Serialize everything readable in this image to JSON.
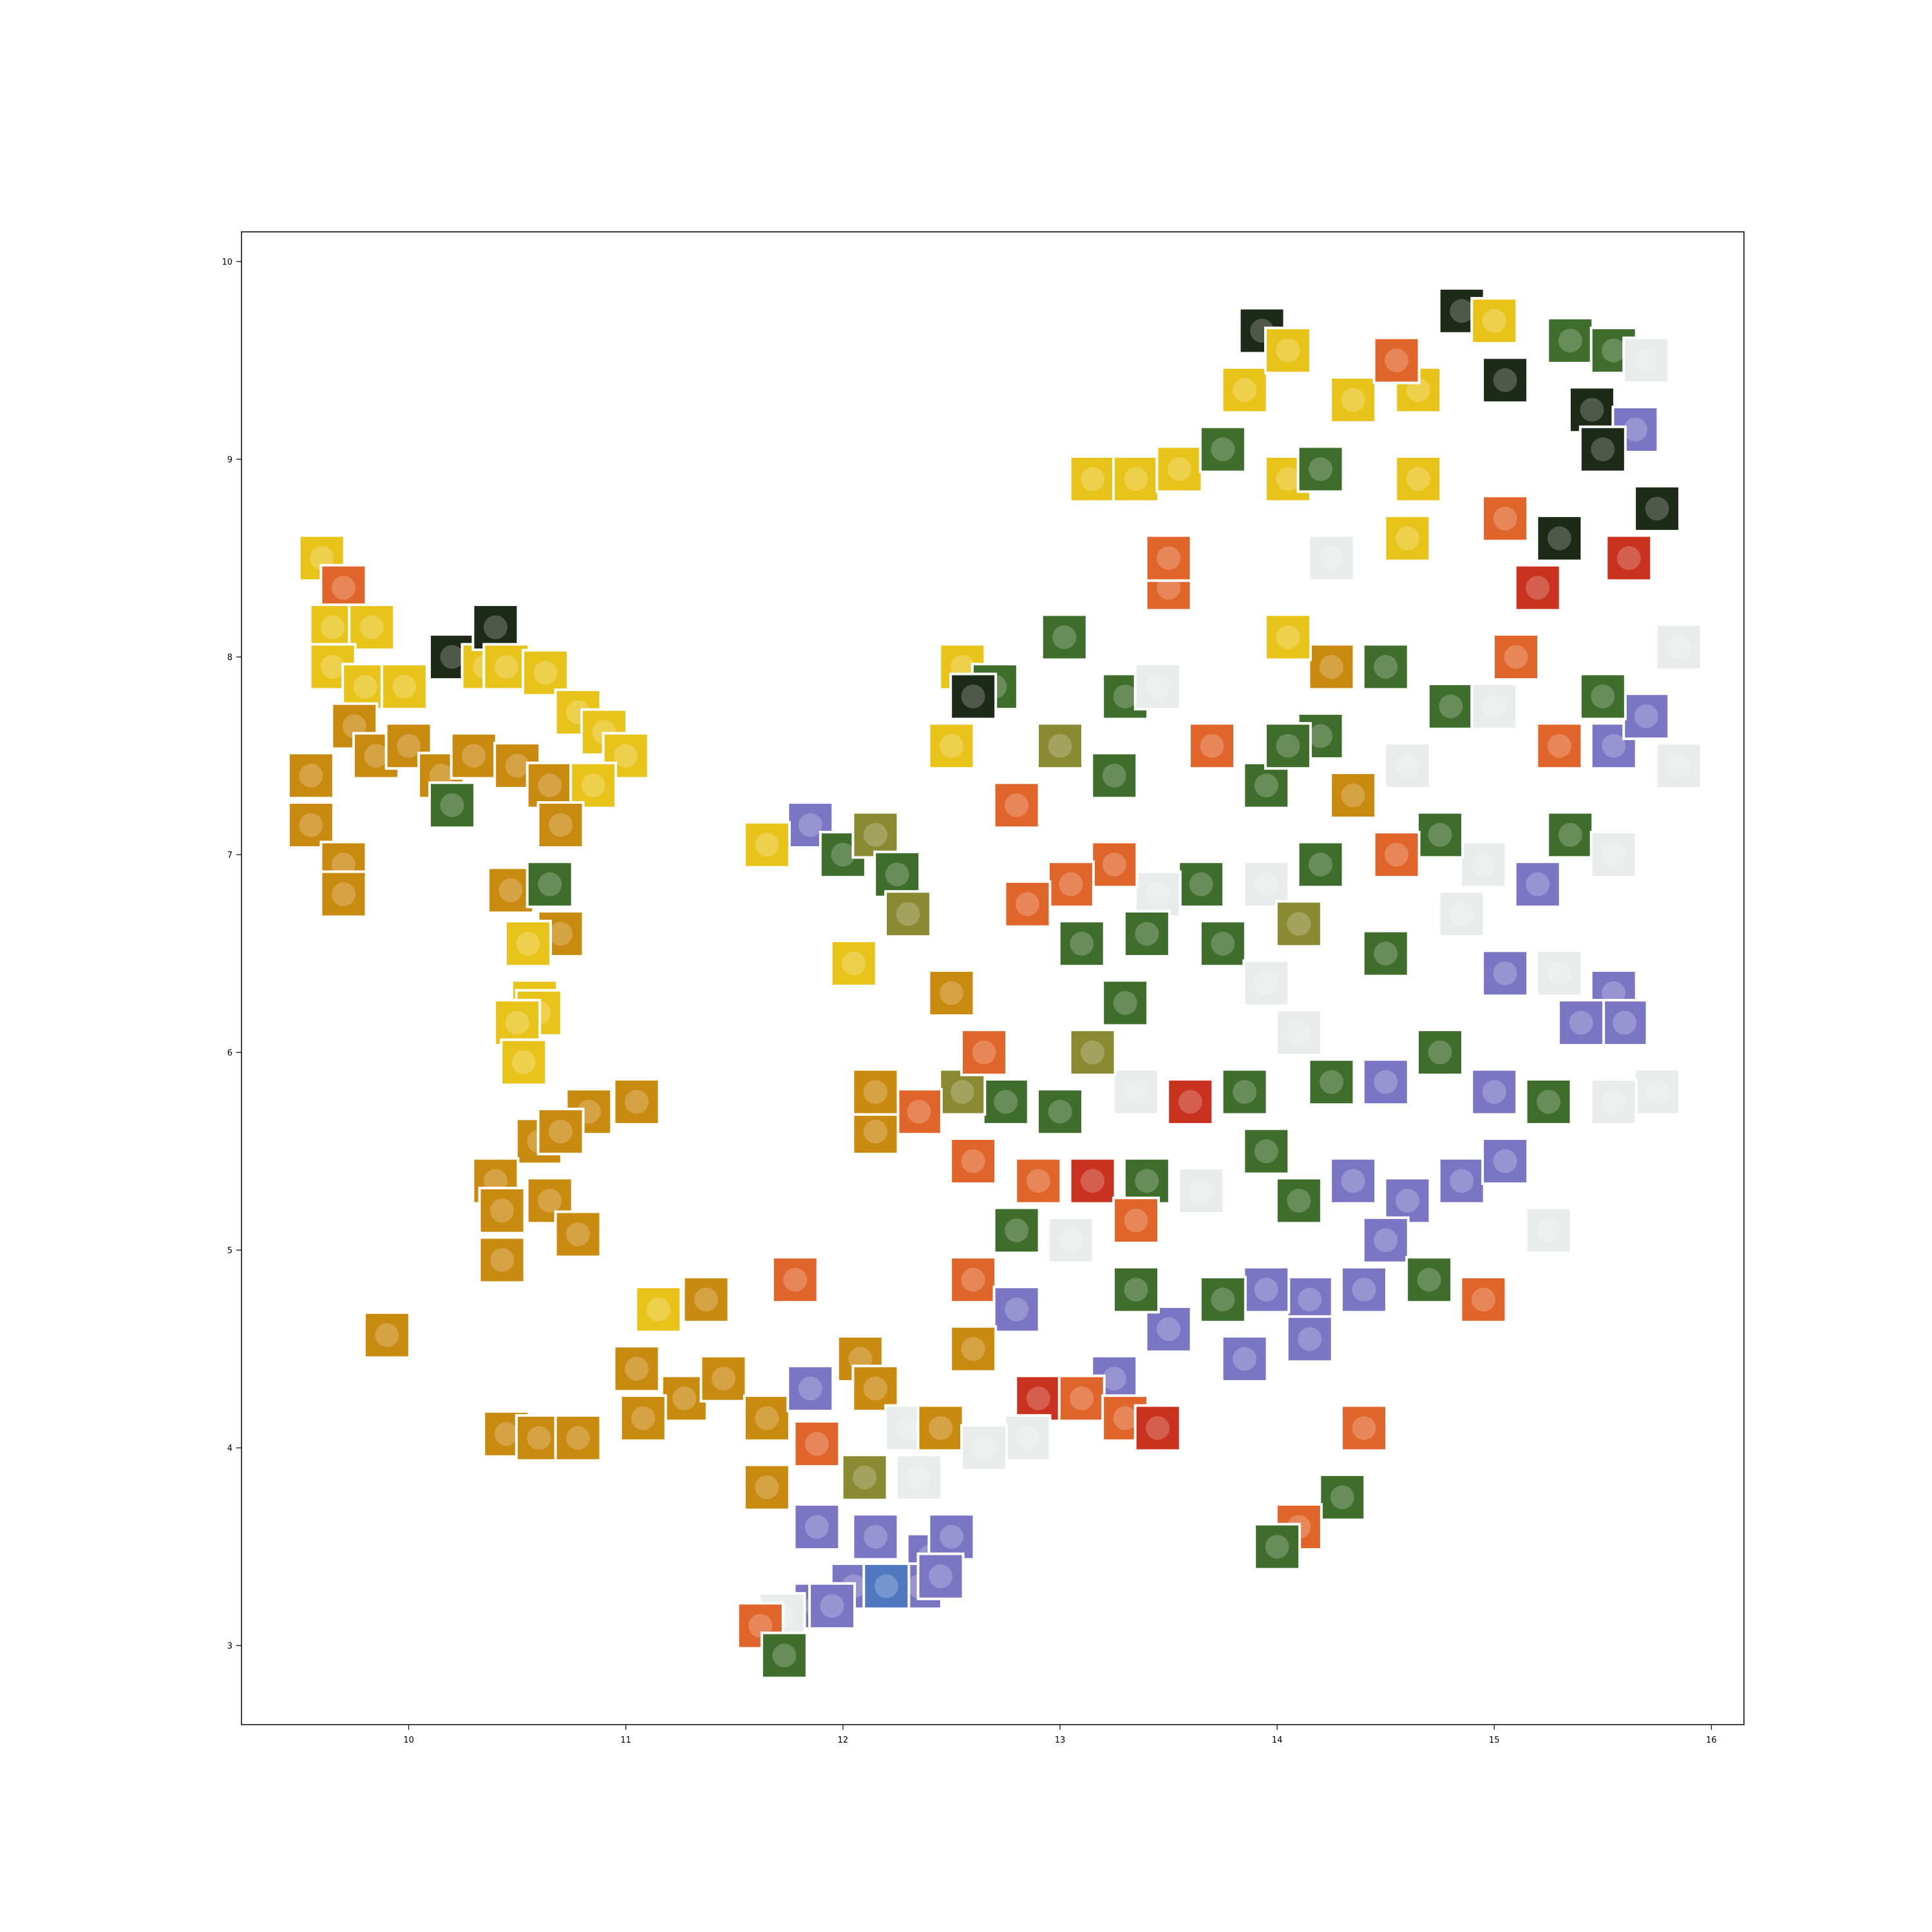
{
  "chart_data": {
    "type": "scatter",
    "title": "",
    "xlabel": "",
    "ylabel": "",
    "xlim": [
      9.23,
      16.15
    ],
    "ylim": [
      2.6,
      10.15
    ],
    "xticks": [
      10,
      11,
      12,
      13,
      14,
      15,
      16
    ],
    "yticks": [
      3,
      4,
      5,
      6,
      7,
      8,
      9,
      10
    ],
    "grid": false,
    "marker": "image-thumbnail",
    "palette": {
      "yellow": "#e8c31a",
      "sunflower": "#c98a10",
      "orange": "#e0652a",
      "red": "#c8321e",
      "green": "#3f6e2c",
      "dark": "#1e2a18",
      "purple": "#7b76c4",
      "white": "#e8ecea",
      "sky": "#4f78c0",
      "olive": "#8a8a32"
    },
    "points": [
      {
        "x": 9.6,
        "y": 8.5,
        "c": "yellow"
      },
      {
        "x": 9.7,
        "y": 8.35,
        "c": "orange"
      },
      {
        "x": 9.65,
        "y": 8.15,
        "c": "yellow"
      },
      {
        "x": 9.83,
        "y": 8.15,
        "c": "yellow"
      },
      {
        "x": 9.65,
        "y": 7.95,
        "c": "yellow"
      },
      {
        "x": 9.8,
        "y": 7.85,
        "c": "yellow"
      },
      {
        "x": 9.98,
        "y": 7.85,
        "c": "yellow"
      },
      {
        "x": 10.2,
        "y": 8.0,
        "c": "dark"
      },
      {
        "x": 10.35,
        "y": 7.95,
        "c": "yellow"
      },
      {
        "x": 10.4,
        "y": 8.15,
        "c": "dark"
      },
      {
        "x": 10.45,
        "y": 7.95,
        "c": "yellow"
      },
      {
        "x": 10.63,
        "y": 7.92,
        "c": "yellow"
      },
      {
        "x": 10.78,
        "y": 7.72,
        "c": "yellow"
      },
      {
        "x": 10.9,
        "y": 7.62,
        "c": "yellow"
      },
      {
        "x": 11.0,
        "y": 7.5,
        "c": "yellow"
      },
      {
        "x": 9.75,
        "y": 7.65,
        "c": "sunflower"
      },
      {
        "x": 9.55,
        "y": 7.4,
        "c": "sunflower"
      },
      {
        "x": 9.85,
        "y": 7.5,
        "c": "sunflower"
      },
      {
        "x": 10.0,
        "y": 7.55,
        "c": "sunflower"
      },
      {
        "x": 10.15,
        "y": 7.4,
        "c": "sunflower"
      },
      {
        "x": 10.3,
        "y": 7.5,
        "c": "sunflower"
      },
      {
        "x": 10.5,
        "y": 7.45,
        "c": "sunflower"
      },
      {
        "x": 10.65,
        "y": 7.35,
        "c": "sunflower"
      },
      {
        "x": 10.85,
        "y": 7.35,
        "c": "yellow"
      },
      {
        "x": 10.7,
        "y": 7.15,
        "c": "sunflower"
      },
      {
        "x": 10.2,
        "y": 7.25,
        "c": "green"
      },
      {
        "x": 9.55,
        "y": 7.15,
        "c": "sunflower"
      },
      {
        "x": 9.7,
        "y": 6.95,
        "c": "sunflower"
      },
      {
        "x": 9.7,
        "y": 6.8,
        "c": "sunflower"
      },
      {
        "x": 10.47,
        "y": 6.82,
        "c": "sunflower"
      },
      {
        "x": 10.65,
        "y": 6.85,
        "c": "green"
      },
      {
        "x": 10.7,
        "y": 6.6,
        "c": "sunflower"
      },
      {
        "x": 10.55,
        "y": 6.55,
        "c": "yellow"
      },
      {
        "x": 10.58,
        "y": 6.25,
        "c": "yellow"
      },
      {
        "x": 10.6,
        "y": 6.2,
        "c": "yellow"
      },
      {
        "x": 10.5,
        "y": 6.15,
        "c": "yellow"
      },
      {
        "x": 10.53,
        "y": 5.95,
        "c": "yellow"
      },
      {
        "x": 10.83,
        "y": 5.7,
        "c": "sunflower"
      },
      {
        "x": 11.05,
        "y": 5.75,
        "c": "sunflower"
      },
      {
        "x": 10.6,
        "y": 5.55,
        "c": "sunflower"
      },
      {
        "x": 10.7,
        "y": 5.6,
        "c": "sunflower"
      },
      {
        "x": 10.4,
        "y": 5.35,
        "c": "sunflower"
      },
      {
        "x": 10.43,
        "y": 5.2,
        "c": "sunflower"
      },
      {
        "x": 10.65,
        "y": 5.25,
        "c": "sunflower"
      },
      {
        "x": 10.78,
        "y": 5.08,
        "c": "sunflower"
      },
      {
        "x": 10.43,
        "y": 4.95,
        "c": "sunflower"
      },
      {
        "x": 9.9,
        "y": 4.57,
        "c": "sunflower"
      },
      {
        "x": 11.15,
        "y": 4.7,
        "c": "yellow"
      },
      {
        "x": 11.37,
        "y": 4.75,
        "c": "sunflower"
      },
      {
        "x": 11.05,
        "y": 4.4,
        "c": "sunflower"
      },
      {
        "x": 11.27,
        "y": 4.25,
        "c": "sunflower"
      },
      {
        "x": 11.45,
        "y": 4.35,
        "c": "sunflower"
      },
      {
        "x": 10.45,
        "y": 4.07,
        "c": "sunflower"
      },
      {
        "x": 10.6,
        "y": 4.05,
        "c": "sunflower"
      },
      {
        "x": 10.78,
        "y": 4.05,
        "c": "sunflower"
      },
      {
        "x": 11.08,
        "y": 4.15,
        "c": "sunflower"
      },
      {
        "x": 11.78,
        "y": 4.85,
        "c": "orange"
      },
      {
        "x": 11.65,
        "y": 4.15,
        "c": "sunflower"
      },
      {
        "x": 11.88,
        "y": 4.02,
        "c": "orange"
      },
      {
        "x": 11.85,
        "y": 4.3,
        "c": "purple"
      },
      {
        "x": 12.08,
        "y": 4.45,
        "c": "sunflower"
      },
      {
        "x": 12.15,
        "y": 4.3,
        "c": "sunflower"
      },
      {
        "x": 12.3,
        "y": 4.1,
        "c": "white"
      },
      {
        "x": 12.45,
        "y": 4.1,
        "c": "sunflower"
      },
      {
        "x": 11.65,
        "y": 3.8,
        "c": "sunflower"
      },
      {
        "x": 12.1,
        "y": 3.85,
        "c": "olive"
      },
      {
        "x": 12.35,
        "y": 3.85,
        "c": "white"
      },
      {
        "x": 11.88,
        "y": 3.6,
        "c": "purple"
      },
      {
        "x": 12.15,
        "y": 3.55,
        "c": "purple"
      },
      {
        "x": 12.4,
        "y": 3.45,
        "c": "purple"
      },
      {
        "x": 12.5,
        "y": 3.55,
        "c": "purple"
      },
      {
        "x": 12.35,
        "y": 3.3,
        "c": "purple"
      },
      {
        "x": 12.05,
        "y": 3.3,
        "c": "purple"
      },
      {
        "x": 11.88,
        "y": 3.2,
        "c": "purple"
      },
      {
        "x": 11.72,
        "y": 3.15,
        "c": "white"
      },
      {
        "x": 11.62,
        "y": 3.1,
        "c": "orange"
      },
      {
        "x": 11.95,
        "y": 3.2,
        "c": "purple"
      },
      {
        "x": 12.2,
        "y": 3.3,
        "c": "sky"
      },
      {
        "x": 12.45,
        "y": 3.35,
        "c": "purple"
      },
      {
        "x": 11.73,
        "y": 2.95,
        "c": "green"
      },
      {
        "x": 11.85,
        "y": 7.15,
        "c": "purple"
      },
      {
        "x": 11.65,
        "y": 7.05,
        "c": "yellow"
      },
      {
        "x": 12.0,
        "y": 7.0,
        "c": "green"
      },
      {
        "x": 12.15,
        "y": 7.1,
        "c": "olive"
      },
      {
        "x": 12.25,
        "y": 6.9,
        "c": "green"
      },
      {
        "x": 12.3,
        "y": 6.7,
        "c": "olive"
      },
      {
        "x": 12.05,
        "y": 6.45,
        "c": "yellow"
      },
      {
        "x": 12.5,
        "y": 7.55,
        "c": "yellow"
      },
      {
        "x": 12.55,
        "y": 7.95,
        "c": "yellow"
      },
      {
        "x": 12.7,
        "y": 7.85,
        "c": "green"
      },
      {
        "x": 12.6,
        "y": 7.8,
        "c": "dark"
      },
      {
        "x": 12.8,
        "y": 7.25,
        "c": "orange"
      },
      {
        "x": 13.02,
        "y": 8.1,
        "c": "green"
      },
      {
        "x": 13.0,
        "y": 7.55,
        "c": "olive"
      },
      {
        "x": 13.25,
        "y": 7.4,
        "c": "green"
      },
      {
        "x": 13.3,
        "y": 7.8,
        "c": "green"
      },
      {
        "x": 13.45,
        "y": 7.85,
        "c": "white"
      },
      {
        "x": 13.5,
        "y": 8.35,
        "c": "orange"
      },
      {
        "x": 13.5,
        "y": 8.5,
        "c": "orange"
      },
      {
        "x": 13.7,
        "y": 7.55,
        "c": "orange"
      },
      {
        "x": 13.95,
        "y": 7.35,
        "c": "green"
      },
      {
        "x": 13.15,
        "y": 8.9,
        "c": "yellow"
      },
      {
        "x": 13.35,
        "y": 8.9,
        "c": "yellow"
      },
      {
        "x": 13.55,
        "y": 8.95,
        "c": "yellow"
      },
      {
        "x": 13.75,
        "y": 9.05,
        "c": "green"
      },
      {
        "x": 13.85,
        "y": 9.35,
        "c": "yellow"
      },
      {
        "x": 13.93,
        "y": 9.65,
        "c": "dark"
      },
      {
        "x": 14.05,
        "y": 9.55,
        "c": "yellow"
      },
      {
        "x": 14.05,
        "y": 8.9,
        "c": "yellow"
      },
      {
        "x": 14.2,
        "y": 8.95,
        "c": "green"
      },
      {
        "x": 14.35,
        "y": 9.3,
        "c": "yellow"
      },
      {
        "x": 14.65,
        "y": 9.35,
        "c": "yellow"
      },
      {
        "x": 14.55,
        "y": 9.5,
        "c": "orange"
      },
      {
        "x": 14.85,
        "y": 9.75,
        "c": "dark"
      },
      {
        "x": 15.0,
        "y": 9.7,
        "c": "yellow"
      },
      {
        "x": 15.05,
        "y": 9.4,
        "c": "dark"
      },
      {
        "x": 15.35,
        "y": 9.6,
        "c": "green"
      },
      {
        "x": 15.55,
        "y": 9.55,
        "c": "green"
      },
      {
        "x": 15.7,
        "y": 9.5,
        "c": "white"
      },
      {
        "x": 15.45,
        "y": 9.25,
        "c": "dark"
      },
      {
        "x": 15.65,
        "y": 9.15,
        "c": "purple"
      },
      {
        "x": 15.5,
        "y": 9.05,
        "c": "dark"
      },
      {
        "x": 15.75,
        "y": 8.75,
        "c": "dark"
      },
      {
        "x": 15.62,
        "y": 8.5,
        "c": "red"
      },
      {
        "x": 15.3,
        "y": 8.6,
        "c": "dark"
      },
      {
        "x": 15.2,
        "y": 8.35,
        "c": "red"
      },
      {
        "x": 15.05,
        "y": 8.7,
        "c": "orange"
      },
      {
        "x": 14.65,
        "y": 8.9,
        "c": "yellow"
      },
      {
        "x": 14.6,
        "y": 8.6,
        "c": "yellow"
      },
      {
        "x": 14.25,
        "y": 8.5,
        "c": "white"
      },
      {
        "x": 14.5,
        "y": 7.95,
        "c": "green"
      },
      {
        "x": 14.2,
        "y": 7.6,
        "c": "green"
      },
      {
        "x": 14.25,
        "y": 7.95,
        "c": "sunflower"
      },
      {
        "x": 14.05,
        "y": 8.1,
        "c": "yellow"
      },
      {
        "x": 14.05,
        "y": 7.55,
        "c": "green"
      },
      {
        "x": 14.35,
        "y": 7.3,
        "c": "sunflower"
      },
      {
        "x": 14.6,
        "y": 7.45,
        "c": "white"
      },
      {
        "x": 14.8,
        "y": 7.75,
        "c": "green"
      },
      {
        "x": 15.0,
        "y": 7.75,
        "c": "white"
      },
      {
        "x": 15.1,
        "y": 8.0,
        "c": "orange"
      },
      {
        "x": 15.3,
        "y": 7.55,
        "c": "orange"
      },
      {
        "x": 15.55,
        "y": 7.55,
        "c": "purple"
      },
      {
        "x": 15.7,
        "y": 7.7,
        "c": "purple"
      },
      {
        "x": 15.85,
        "y": 7.45,
        "c": "white"
      },
      {
        "x": 15.85,
        "y": 8.05,
        "c": "white"
      },
      {
        "x": 15.5,
        "y": 7.8,
        "c": "green"
      },
      {
        "x": 15.35,
        "y": 7.1,
        "c": "green"
      },
      {
        "x": 15.55,
        "y": 7.0,
        "c": "white"
      },
      {
        "x": 15.2,
        "y": 6.85,
        "c": "purple"
      },
      {
        "x": 14.95,
        "y": 6.95,
        "c": "white"
      },
      {
        "x": 14.75,
        "y": 7.1,
        "c": "green"
      },
      {
        "x": 14.55,
        "y": 7.0,
        "c": "orange"
      },
      {
        "x": 14.2,
        "y": 6.95,
        "c": "green"
      },
      {
        "x": 13.95,
        "y": 6.85,
        "c": "white"
      },
      {
        "x": 13.65,
        "y": 6.85,
        "c": "green"
      },
      {
        "x": 13.45,
        "y": 6.8,
        "c": "white"
      },
      {
        "x": 13.25,
        "y": 6.95,
        "c": "orange"
      },
      {
        "x": 13.05,
        "y": 6.85,
        "c": "orange"
      },
      {
        "x": 12.85,
        "y": 6.75,
        "c": "orange"
      },
      {
        "x": 13.1,
        "y": 6.55,
        "c": "green"
      },
      {
        "x": 13.4,
        "y": 6.6,
        "c": "green"
      },
      {
        "x": 13.75,
        "y": 6.55,
        "c": "green"
      },
      {
        "x": 13.95,
        "y": 6.35,
        "c": "white"
      },
      {
        "x": 14.1,
        "y": 6.65,
        "c": "olive"
      },
      {
        "x": 14.5,
        "y": 6.5,
        "c": "green"
      },
      {
        "x": 14.85,
        "y": 6.7,
        "c": "white"
      },
      {
        "x": 15.05,
        "y": 6.4,
        "c": "purple"
      },
      {
        "x": 15.3,
        "y": 6.4,
        "c": "white"
      },
      {
        "x": 15.55,
        "y": 6.3,
        "c": "purple"
      },
      {
        "x": 15.6,
        "y": 6.15,
        "c": "purple"
      },
      {
        "x": 15.4,
        "y": 6.15,
        "c": "purple"
      },
      {
        "x": 15.75,
        "y": 5.8,
        "c": "white"
      },
      {
        "x": 15.55,
        "y": 5.75,
        "c": "white"
      },
      {
        "x": 15.25,
        "y": 5.75,
        "c": "green"
      },
      {
        "x": 15.0,
        "y": 5.8,
        "c": "purple"
      },
      {
        "x": 14.75,
        "y": 6.0,
        "c": "green"
      },
      {
        "x": 14.5,
        "y": 5.85,
        "c": "purple"
      },
      {
        "x": 14.25,
        "y": 5.85,
        "c": "green"
      },
      {
        "x": 14.1,
        "y": 6.1,
        "c": "white"
      },
      {
        "x": 13.85,
        "y": 5.8,
        "c": "green"
      },
      {
        "x": 13.6,
        "y": 5.75,
        "c": "red"
      },
      {
        "x": 13.35,
        "y": 5.8,
        "c": "white"
      },
      {
        "x": 13.15,
        "y": 6.0,
        "c": "olive"
      },
      {
        "x": 13.0,
        "y": 5.7,
        "c": "green"
      },
      {
        "x": 12.75,
        "y": 5.75,
        "c": "green"
      },
      {
        "x": 12.55,
        "y": 5.8,
        "c": "olive"
      },
      {
        "x": 12.35,
        "y": 5.7,
        "c": "orange"
      },
      {
        "x": 12.15,
        "y": 5.6,
        "c": "sunflower"
      },
      {
        "x": 12.15,
        "y": 5.8,
        "c": "sunflower"
      },
      {
        "x": 12.5,
        "y": 6.3,
        "c": "sunflower"
      },
      {
        "x": 12.65,
        "y": 6.0,
        "c": "orange"
      },
      {
        "x": 13.3,
        "y": 6.25,
        "c": "green"
      },
      {
        "x": 12.6,
        "y": 5.45,
        "c": "orange"
      },
      {
        "x": 12.9,
        "y": 5.35,
        "c": "orange"
      },
      {
        "x": 13.15,
        "y": 5.35,
        "c": "red"
      },
      {
        "x": 13.4,
        "y": 5.35,
        "c": "green"
      },
      {
        "x": 13.65,
        "y": 5.3,
        "c": "white"
      },
      {
        "x": 13.95,
        "y": 5.5,
        "c": "green"
      },
      {
        "x": 14.1,
        "y": 5.25,
        "c": "green"
      },
      {
        "x": 14.35,
        "y": 5.35,
        "c": "purple"
      },
      {
        "x": 14.6,
        "y": 5.25,
        "c": "purple"
      },
      {
        "x": 14.85,
        "y": 5.35,
        "c": "purple"
      },
      {
        "x": 15.05,
        "y": 5.45,
        "c": "purple"
      },
      {
        "x": 15.25,
        "y": 5.1,
        "c": "white"
      },
      {
        "x": 14.5,
        "y": 5.05,
        "c": "purple"
      },
      {
        "x": 14.4,
        "y": 4.8,
        "c": "purple"
      },
      {
        "x": 14.7,
        "y": 4.85,
        "c": "green"
      },
      {
        "x": 14.95,
        "y": 4.75,
        "c": "orange"
      },
      {
        "x": 14.15,
        "y": 4.75,
        "c": "purple"
      },
      {
        "x": 13.95,
        "y": 4.8,
        "c": "purple"
      },
      {
        "x": 13.75,
        "y": 4.75,
        "c": "green"
      },
      {
        "x": 13.5,
        "y": 4.6,
        "c": "purple"
      },
      {
        "x": 13.35,
        "y": 4.8,
        "c": "green"
      },
      {
        "x": 13.25,
        "y": 4.35,
        "c": "purple"
      },
      {
        "x": 13.85,
        "y": 4.45,
        "c": "purple"
      },
      {
        "x": 14.15,
        "y": 4.55,
        "c": "purple"
      },
      {
        "x": 12.8,
        "y": 5.1,
        "c": "green"
      },
      {
        "x": 13.05,
        "y": 5.05,
        "c": "white"
      },
      {
        "x": 13.35,
        "y": 5.15,
        "c": "orange"
      },
      {
        "x": 12.6,
        "y": 4.85,
        "c": "orange"
      },
      {
        "x": 12.8,
        "y": 4.7,
        "c": "purple"
      },
      {
        "x": 12.6,
        "y": 4.5,
        "c": "sunflower"
      },
      {
        "x": 12.9,
        "y": 4.25,
        "c": "red"
      },
      {
        "x": 13.1,
        "y": 4.25,
        "c": "orange"
      },
      {
        "x": 13.3,
        "y": 4.15,
        "c": "orange"
      },
      {
        "x": 13.45,
        "y": 4.1,
        "c": "red"
      },
      {
        "x": 12.85,
        "y": 4.05,
        "c": "white"
      },
      {
        "x": 12.65,
        "y": 4.0,
        "c": "white"
      },
      {
        "x": 14.4,
        "y": 4.1,
        "c": "orange"
      },
      {
        "x": 14.3,
        "y": 3.75,
        "c": "green"
      },
      {
        "x": 14.1,
        "y": 3.6,
        "c": "orange"
      },
      {
        "x": 14.0,
        "y": 3.5,
        "c": "green"
      }
    ]
  }
}
